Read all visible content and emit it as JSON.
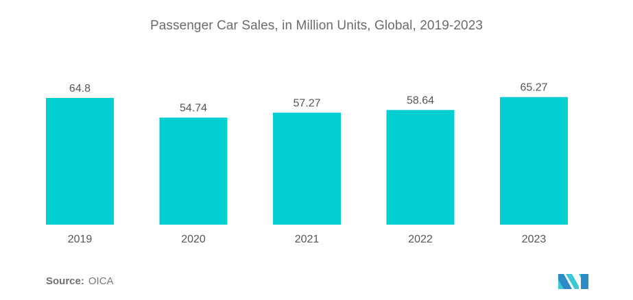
{
  "chart_data": {
    "type": "bar",
    "title": "Passenger Car Sales, in Million Units, Global, 2019-2023",
    "categories": [
      "2019",
      "2020",
      "2021",
      "2022",
      "2023"
    ],
    "values": [
      64.8,
      54.74,
      57.27,
      58.64,
      65.27
    ],
    "value_labels": [
      "64.8",
      "54.74",
      "57.27",
      "58.64",
      "65.27"
    ],
    "xlabel": "",
    "ylabel": "",
    "ylim": [
      0,
      65.27
    ],
    "grid": false,
    "legend": "none",
    "bar_color": "#00CED1"
  },
  "source": {
    "label": "Source:",
    "value": "OICA"
  },
  "logo": {
    "name": "mordor-intelligence-logo",
    "colors": [
      "#2A8BC6",
      "#3CC8D3"
    ]
  }
}
